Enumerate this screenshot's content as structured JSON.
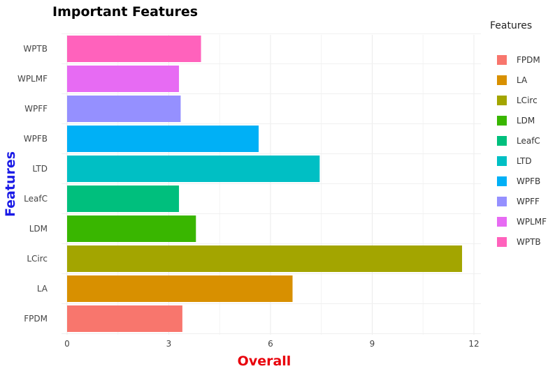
{
  "chart_data": {
    "type": "bar",
    "orientation": "horizontal",
    "title": "Important Features",
    "xlabel": "Overall",
    "ylabel": "Features",
    "xlabel_color": "#e8000b",
    "ylabel_color": "#1a1ae6",
    "xlim": [
      0,
      12.2
    ],
    "xticks": [
      0,
      3,
      6,
      9,
      12
    ],
    "grid": true,
    "legend": {
      "title": "Features",
      "placement": "right"
    },
    "categories": [
      "FPDM",
      "LA",
      "LCirc",
      "LDM",
      "LeafC",
      "LTD",
      "WPFB",
      "WPFF",
      "WPLMF",
      "WPTB"
    ],
    "values": [
      3.4,
      6.65,
      11.65,
      3.8,
      3.3,
      7.45,
      5.65,
      3.35,
      3.3,
      3.95
    ],
    "colors": [
      "#f8766d",
      "#d89000",
      "#a3a500",
      "#39b600",
      "#00bf7d",
      "#00bfc4",
      "#00b0f6",
      "#9590ff",
      "#e76bf3",
      "#ff62bc"
    ]
  }
}
